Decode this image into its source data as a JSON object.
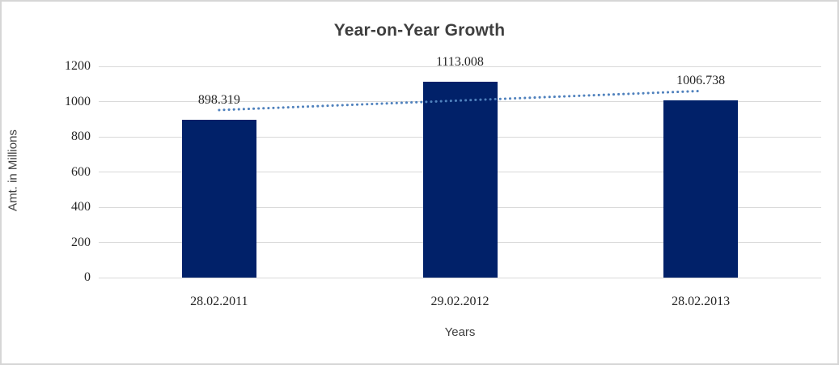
{
  "chart_data": {
    "type": "bar",
    "title": "Year-on-Year Growth",
    "xlabel": "Years",
    "ylabel": "Amt. in Millions",
    "categories": [
      "28.02.2011",
      "29.02.2012",
      "28.02.2013"
    ],
    "values": [
      898.319,
      1113.008,
      1006.738
    ],
    "data_labels": [
      "898.319",
      "1113.008",
      "1006.738"
    ],
    "yticks": [
      0,
      200,
      400,
      600,
      800,
      1000,
      1200
    ],
    "ytick_labels": [
      "0",
      "200",
      "400",
      "600",
      "800",
      "1000",
      "1200"
    ],
    "ylim": [
      0,
      1200
    ],
    "grid": "horizontal-major",
    "legend": "none",
    "series": [
      {
        "name": "Amt. in Millions",
        "values": [
          898.319,
          1113.008,
          1006.738
        ]
      }
    ],
    "trendline": {
      "type": "linear",
      "style": "dotted",
      "applies_to": "series-1"
    },
    "colors": {
      "bar_fill": "#012169",
      "trendline": "#4f81bd",
      "gridline": "#d9d9d9",
      "title_text": "#3f3f3f",
      "axis_title_text": "#404040",
      "tick_text": "#262626",
      "frame_border": "#d6d6d6",
      "background": "#ffffff"
    }
  }
}
